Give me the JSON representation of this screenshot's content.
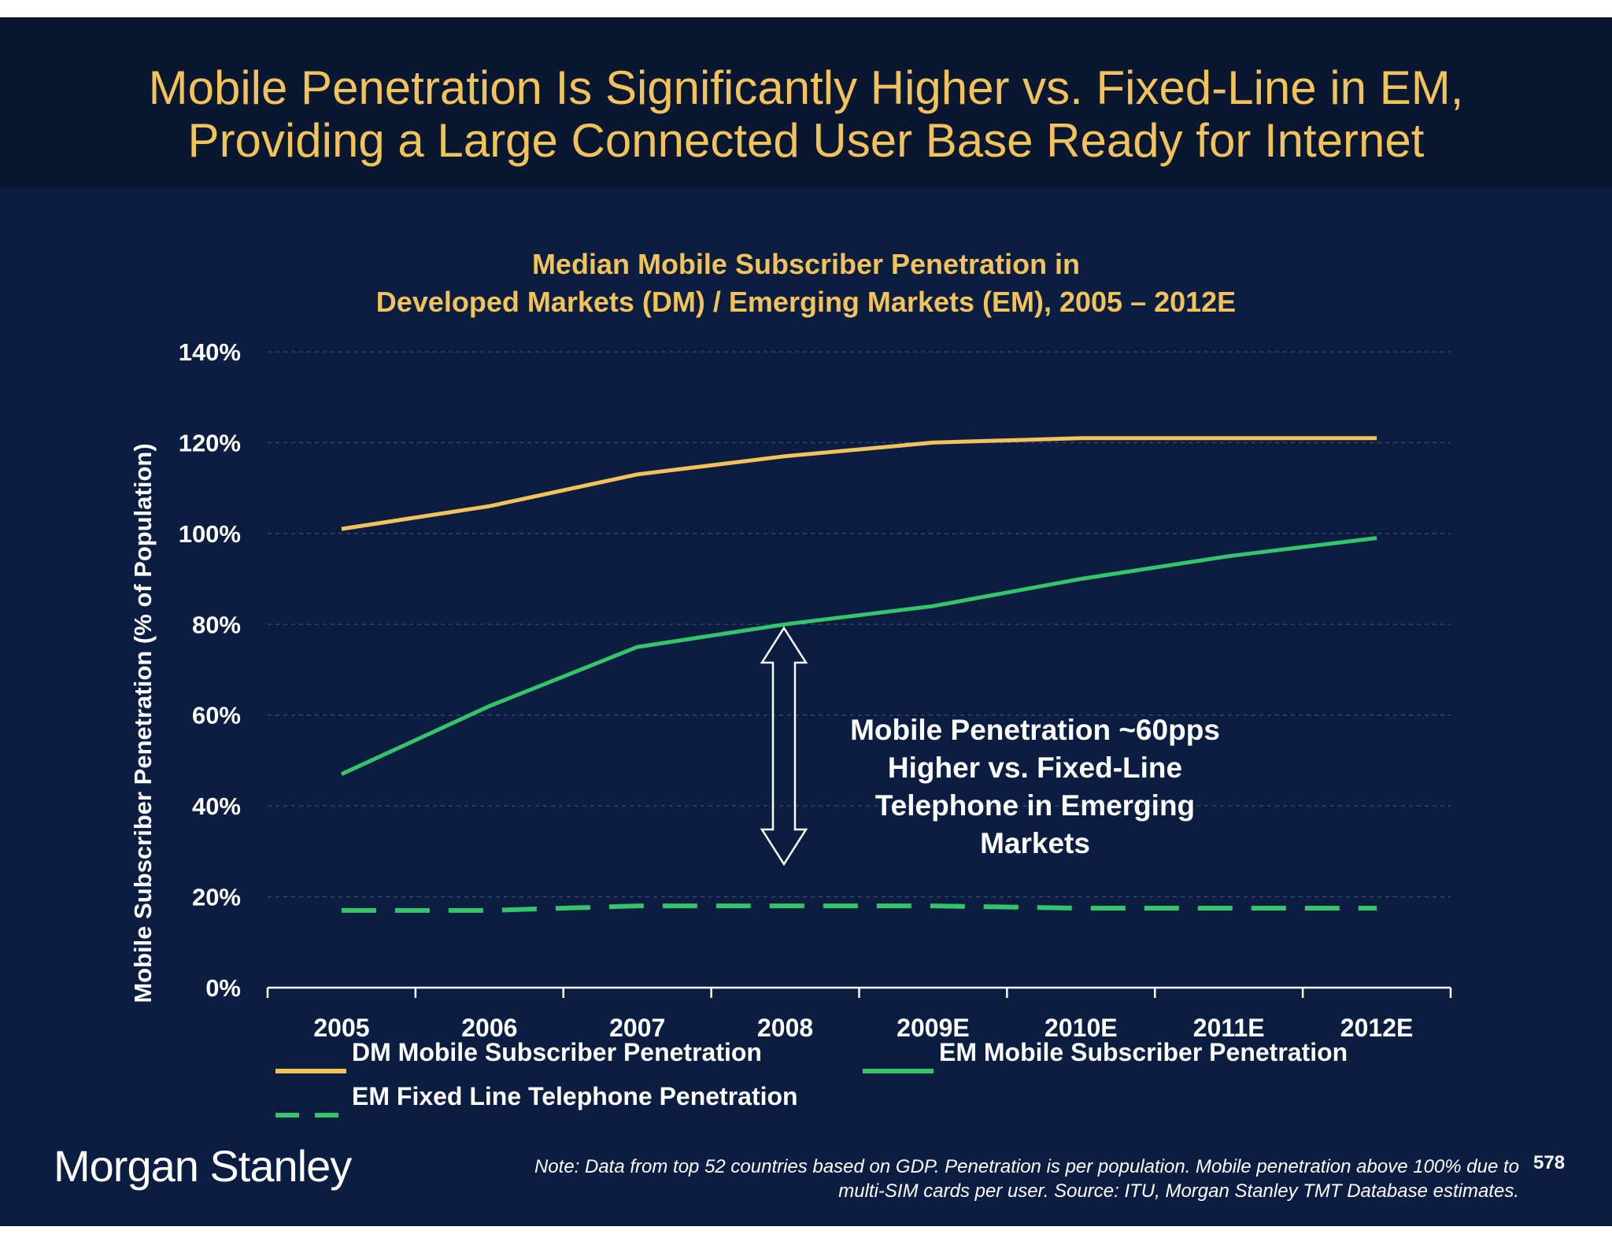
{
  "slide": {
    "title_line1": "Mobile Penetration Is Significantly Higher vs. Fixed-Line in EM,",
    "title_line2": "Providing a Large Connected User Base Ready for Internet",
    "brand": "Morgan Stanley",
    "note_line1": "Note: Data from top 52 countries based on GDP. Penetration is per population. Mobile penetration above 100% due to",
    "note_line2": "multi-SIM cards per user. Source: ITU, Morgan Stanley TMT Database estimates.",
    "page_number": "578",
    "callout": [
      "Mobile Penetration ~60pps",
      "Higher vs. Fixed-Line",
      "Telephone in Emerging",
      "Markets"
    ],
    "colors": {
      "background": "#0c1d42",
      "title_band": "#091731",
      "title_text": "#f2c35a",
      "dm_line": "#f2c35a",
      "em_line": "#35c46a",
      "text": "#ffffff"
    }
  },
  "chart_data": {
    "type": "line",
    "title_line1": "Median Mobile Subscriber Penetration in",
    "title_line2": "Developed Markets (DM) / Emerging Markets (EM), 2005 – 2012E",
    "xlabel": "",
    "ylabel": "Mobile Subscriber Penetration (% of Population)",
    "categories": [
      "2005",
      "2006",
      "2007",
      "2008",
      "2009E",
      "2010E",
      "2011E",
      "2012E"
    ],
    "ylim": [
      0,
      140
    ],
    "yticks": [
      "0%",
      "20%",
      "40%",
      "60%",
      "80%",
      "100%",
      "120%",
      "140%"
    ],
    "ytick_values": [
      0,
      20,
      40,
      60,
      80,
      100,
      120,
      140
    ],
    "grid": true,
    "legend_position": "bottom",
    "series": [
      {
        "name": "DM Mobile Subscriber Penetration",
        "style": "solid",
        "color": "#f2c35a",
        "values": [
          101,
          106,
          113,
          117,
          120,
          121,
          121,
          121
        ]
      },
      {
        "name": "EM Mobile Subscriber Penetration",
        "style": "solid",
        "color": "#35c46a",
        "values": [
          47,
          62,
          75,
          80,
          84,
          90,
          95,
          99
        ]
      },
      {
        "name": "EM Fixed Line Telephone Penetration",
        "style": "dashed",
        "color": "#35c46a",
        "values": [
          17,
          17,
          18,
          18,
          18,
          17.5,
          17.5,
          17.5
        ]
      }
    ]
  }
}
